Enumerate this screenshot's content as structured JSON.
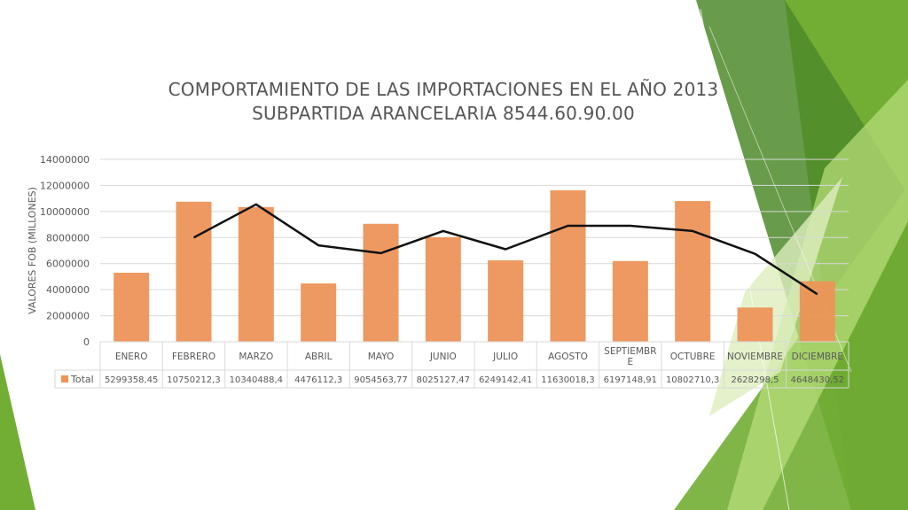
{
  "chart_data": {
    "type": "bar",
    "title": [
      "COMPORTAMIENTO DE LAS IMPORTACIONES EN EL AÑO 2013",
      "SUBPARTIDA ARANCELARIA 8544.60.90.00"
    ],
    "ylabel": "VALORES FOB (MILLONES)",
    "xlabel": "",
    "ylim": [
      0,
      14000000
    ],
    "yticks": [
      "0",
      "2000000",
      "4000000",
      "6000000",
      "8000000",
      "10000000",
      "12000000",
      "14000000"
    ],
    "yticks_values": [
      0,
      2000000,
      4000000,
      6000000,
      8000000,
      10000000,
      12000000,
      14000000
    ],
    "grid": true,
    "categories": [
      "ENERO",
      "FEBRERO",
      "MARZO",
      "ABRIL",
      "MAYO",
      "JUNIO",
      "JULIO",
      "AGOSTO",
      "SEPTIEMBRE",
      "OCTUBRE",
      "NOVIEMBRE",
      "DICIEMBRE"
    ],
    "category_labels": [
      [
        "ENERO"
      ],
      [
        "FEBRERO"
      ],
      [
        "MARZO"
      ],
      [
        "ABRIL"
      ],
      [
        "MAYO"
      ],
      [
        "JUNIO"
      ],
      [
        "JULIO"
      ],
      [
        "AGOSTO"
      ],
      [
        "SEPTIEMBR",
        "E"
      ],
      [
        "OCTUBRE"
      ],
      [
        "NOVIEMBRE"
      ],
      [
        "DICIEMBRE"
      ]
    ],
    "series": [
      {
        "name": "Total",
        "color": "#ED9459",
        "values": [
          5299358.45,
          10750212.3,
          10340488.4,
          4476112.3,
          9054563.77,
          8025127.47,
          6249142.41,
          11630018.3,
          6197148.91,
          10802710.3,
          2628298.5,
          4648430.52
        ],
        "value_labels": [
          "5299358,45",
          "10750212,3",
          "10340488,4",
          "4476112,3",
          "9054563,77",
          "8025127,47",
          "6249142,41",
          "11630018,3",
          "6197148,91",
          "10802710,3",
          "2628298,5",
          "4648430,52"
        ]
      }
    ],
    "trendline": {
      "type": "line",
      "color": "#111111",
      "x": [
        "FEBRERO",
        "MARZO",
        "ABRIL",
        "MAYO",
        "JUNIO",
        "JULIO",
        "AGOSTO",
        "SEPTIEMBRE",
        "OCTUBRE",
        "NOVIEMBRE",
        "DICIEMBRE"
      ],
      "values": [
        8000000,
        10550000,
        7400000,
        6800000,
        8500000,
        7100000,
        8900000,
        8900000,
        8500000,
        6750000,
        3650000
      ]
    },
    "data_table": {
      "header": "Total",
      "legend_color": "#ED9459"
    }
  },
  "theme": {
    "green_dark": "#4E8A2A",
    "green_mid": "#72AE33",
    "green_light": "#B6DC7A",
    "green_pale": "#DDEDBE",
    "text": "#595959",
    "grid": "#D9D9D9"
  }
}
